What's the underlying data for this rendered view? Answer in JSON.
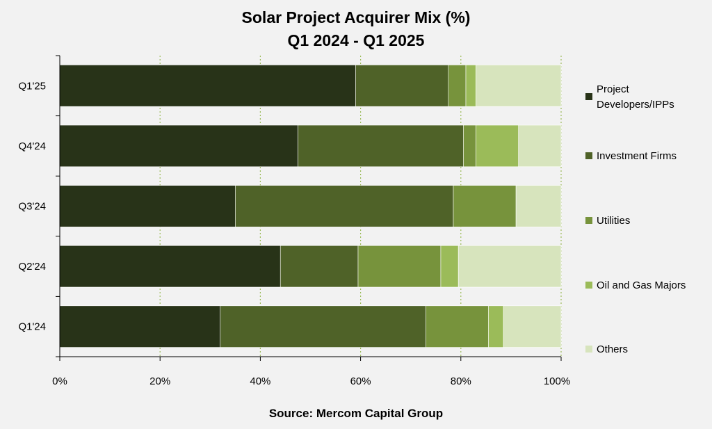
{
  "chart_data": {
    "type": "bar",
    "orientation": "horizontal",
    "stacked": true,
    "title": [
      "Solar Project Acquirer Mix (%)",
      "Q1 2024 - Q1 2025"
    ],
    "source": "Source: Mercom Capital Group",
    "categories": [
      "Q1'25",
      "Q4'24",
      "Q3'24",
      "Q2'24",
      "Q1'24"
    ],
    "xlim": [
      0,
      100
    ],
    "xticks": [
      "0%",
      "20%",
      "40%",
      "60%",
      "80%",
      "100%"
    ],
    "xtick_values": [
      0,
      20,
      40,
      60,
      80,
      100
    ],
    "grid": "vertical-dotted",
    "legend": "right",
    "series": [
      {
        "name": "Project Developers/IPPs",
        "legend_lines": [
          "Project",
          "Developers/IPPs"
        ],
        "color": "#283318",
        "values": [
          59,
          47.5,
          35,
          44,
          32
        ]
      },
      {
        "name": "Investment Firms",
        "legend_lines": [
          "Investment Firms"
        ],
        "color": "#4f6228",
        "values": [
          18.5,
          33,
          43.5,
          15.5,
          41
        ]
      },
      {
        "name": "Utilities",
        "legend_lines": [
          "Utilities"
        ],
        "color": "#77933c",
        "values": [
          3.5,
          2.5,
          12.5,
          16.5,
          12.5
        ]
      },
      {
        "name": "Oil and Gas Majors",
        "legend_lines": [
          "Oil and Gas Majors"
        ],
        "color": "#9bbb59",
        "values": [
          2,
          8.5,
          0,
          3.5,
          3
        ]
      },
      {
        "name": "Others",
        "legend_lines": [
          "Others"
        ],
        "color": "#d7e4bd",
        "values": [
          17,
          8.5,
          9,
          20.5,
          11.5
        ]
      }
    ]
  }
}
